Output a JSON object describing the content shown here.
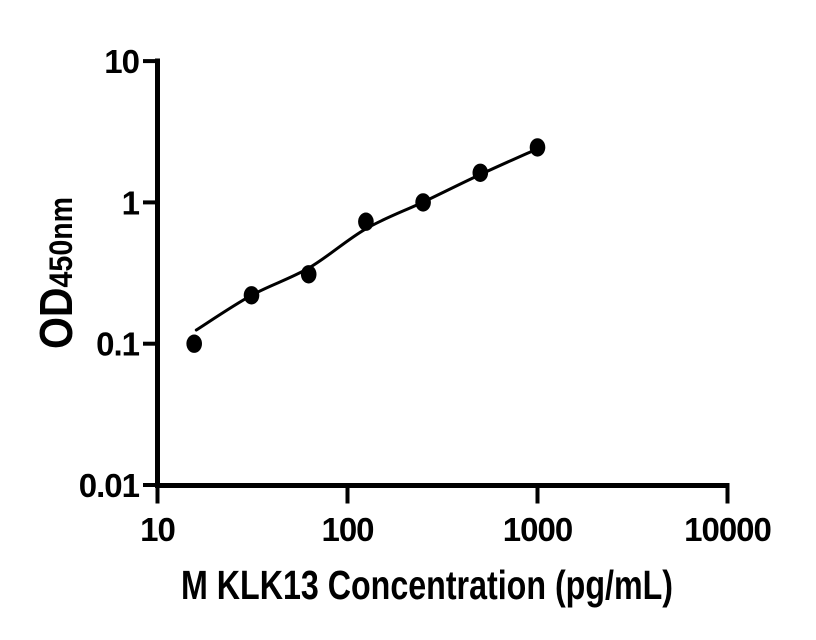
{
  "figure": {
    "background_color": "#ffffff",
    "ink_color": "#000000"
  },
  "chart_data": {
    "type": "scatter",
    "title": "",
    "xlabel": "M KLK13 Concentration (pg/mL)",
    "ylabel_main": "OD",
    "ylabel_sub": "450nm",
    "x_scale": "log",
    "y_scale": "log",
    "xlim": [
      10,
      10000
    ],
    "ylim": [
      0.01,
      10
    ],
    "x_ticks": [
      10,
      100,
      1000,
      10000
    ],
    "x_tick_labels": [
      "10",
      "100",
      "1000",
      "10000"
    ],
    "y_ticks": [
      10,
      1,
      0.1,
      0.01
    ],
    "y_tick_labels": [
      "10",
      "1",
      "0.1",
      "0.01"
    ],
    "grid": false,
    "legend": false,
    "series": [
      {
        "name": "standard-points",
        "type": "scatter",
        "marker": "filled-circle",
        "color": "#000000",
        "x": [
          15.6,
          31.25,
          62.5,
          125,
          250,
          500,
          1000
        ],
        "y": [
          0.1,
          0.22,
          0.31,
          0.73,
          1.0,
          1.62,
          2.45
        ]
      },
      {
        "name": "fitted-curve",
        "type": "line",
        "color": "#000000",
        "x": [
          16,
          31.25,
          62.5,
          125,
          250,
          500,
          1000
        ],
        "y": [
          0.125,
          0.22,
          0.343,
          0.65,
          1.005,
          1.575,
          2.4
        ]
      }
    ]
  }
}
